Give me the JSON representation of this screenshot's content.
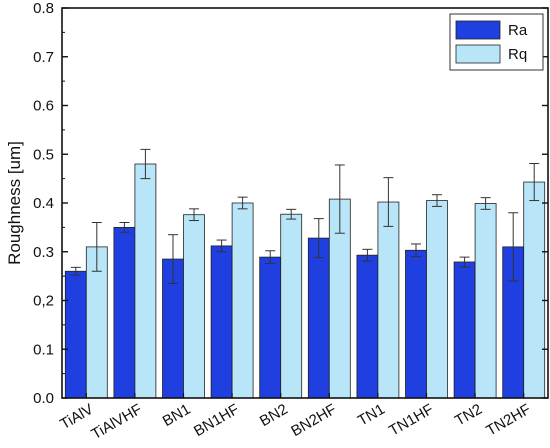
{
  "chart_data": {
    "type": "bar",
    "title": "",
    "xlabel": "",
    "ylabel": "Roughness [um]",
    "ylim": [
      0,
      0.8
    ],
    "yticks": [
      0.0,
      0.1,
      0.2,
      0.3,
      0.4,
      0.5,
      0.6,
      0.7,
      0.8
    ],
    "ytick_labels": [
      "0.0",
      "0.1",
      "0,2",
      "0.3",
      "0.4",
      "0.5",
      "0.6",
      "0.7",
      "0.8"
    ],
    "grid": false,
    "legend_position": "top-right",
    "categories": [
      "TiAlV",
      "TiAlVHF",
      "BN1",
      "BN1HF",
      "BN2",
      "BN2HF",
      "TN1",
      "TN1HF",
      "TN2",
      "TN2HF"
    ],
    "series": [
      {
        "name": "Ra",
        "color": "#1f3fe0",
        "values": [
          0.26,
          0.35,
          0.285,
          0.312,
          0.289,
          0.328,
          0.293,
          0.303,
          0.279,
          0.31
        ],
        "errors": [
          0.008,
          0.01,
          0.05,
          0.012,
          0.013,
          0.04,
          0.012,
          0.013,
          0.01,
          0.07
        ]
      },
      {
        "name": "Rq",
        "color": "#b8e6f8",
        "values": [
          0.31,
          0.48,
          0.376,
          0.4,
          0.377,
          0.408,
          0.402,
          0.405,
          0.399,
          0.443
        ],
        "errors": [
          0.05,
          0.03,
          0.012,
          0.012,
          0.01,
          0.07,
          0.05,
          0.012,
          0.012,
          0.038
        ]
      }
    ]
  }
}
